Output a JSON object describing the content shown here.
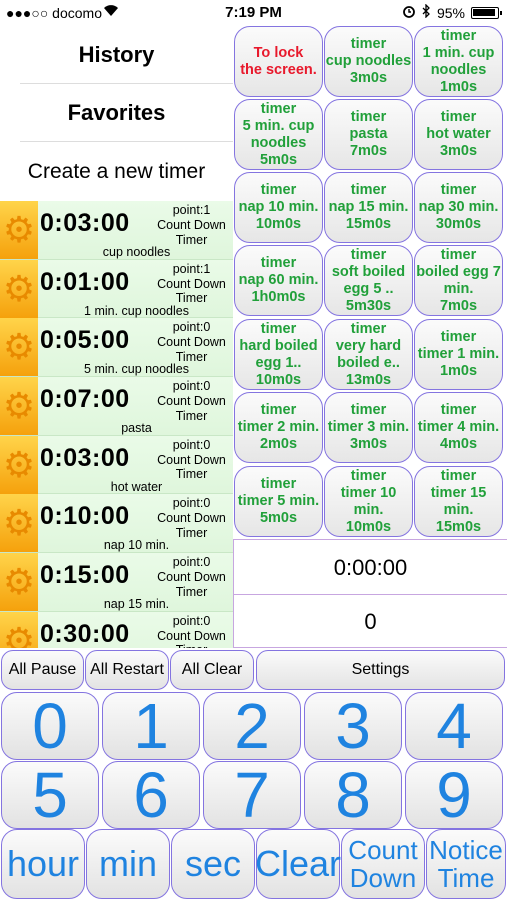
{
  "status": {
    "carrier": "●●●○○ docomo",
    "time": "7:19 PM",
    "battery": "95%"
  },
  "menu": {
    "history": "History",
    "favorites": "Favorites",
    "create": "Create a new timer"
  },
  "timers": [
    {
      "time": "0:03:00",
      "point": "point:1",
      "type": "Count Down Timer",
      "name": "cup noodles"
    },
    {
      "time": "0:01:00",
      "point": "point:1",
      "type": "Count Down Timer",
      "name": "1 min. cup noodles"
    },
    {
      "time": "0:05:00",
      "point": "point:0",
      "type": "Count Down Timer",
      "name": "5 min. cup noodles"
    },
    {
      "time": "0:07:00",
      "point": "point:0",
      "type": "Count Down Timer",
      "name": "pasta"
    },
    {
      "time": "0:03:00",
      "point": "point:0",
      "type": "Count Down Timer",
      "name": "hot water"
    },
    {
      "time": "0:10:00",
      "point": "point:0",
      "type": "Count Down Timer",
      "name": "nap 10 min."
    },
    {
      "time": "0:15:00",
      "point": "point:0",
      "type": "Count Down Timer",
      "name": "nap 15 min."
    },
    {
      "time": "0:30:00",
      "point": "point:0",
      "type": "Count Down Timer",
      "name": ""
    }
  ],
  "presets": [
    [
      "To lock",
      "the screen."
    ],
    [
      "timer",
      "cup noodles",
      "3m0s"
    ],
    [
      "timer",
      "1 min. cup",
      "noodles",
      "1m0s"
    ],
    [
      "timer",
      "5 min. cup",
      "noodles",
      "5m0s"
    ],
    [
      "timer",
      "pasta",
      "7m0s"
    ],
    [
      "timer",
      "hot water",
      "3m0s"
    ],
    [
      "timer",
      "nap 10 min.",
      "10m0s"
    ],
    [
      "timer",
      "nap 15 min.",
      "15m0s"
    ],
    [
      "timer",
      "nap 30 min.",
      "30m0s"
    ],
    [
      "timer",
      "nap 60 min.",
      "1h0m0s"
    ],
    [
      "timer",
      "soft boiled",
      "egg 5 ..",
      "5m30s"
    ],
    [
      "timer",
      "boiled egg 7",
      "min.",
      "7m0s"
    ],
    [
      "timer",
      "hard boiled",
      "egg 1..",
      "10m0s"
    ],
    [
      "timer",
      "very hard",
      "boiled e..",
      "13m0s"
    ],
    [
      "timer",
      "timer 1 min.",
      "1m0s"
    ],
    [
      "timer",
      "timer 2 min.",
      "2m0s"
    ],
    [
      "timer",
      "timer 3 min.",
      "3m0s"
    ],
    [
      "timer",
      "timer 4 min.",
      "4m0s"
    ],
    [
      "timer",
      "timer 5 min.",
      "5m0s"
    ],
    [
      "timer",
      "timer 10",
      "min.",
      "10m0s"
    ],
    [
      "timer",
      "timer 15",
      "min.",
      "15m0s"
    ]
  ],
  "display": {
    "time": "0:00:00",
    "count": "0"
  },
  "controls": {
    "all_pause": "All Pause",
    "all_restart": "All Restart",
    "all_clear": "All Clear",
    "settings": "Settings"
  },
  "keypad": {
    "digits": [
      "0",
      "1",
      "2",
      "3",
      "4",
      "5",
      "6",
      "7",
      "8",
      "9"
    ],
    "hour": "hour",
    "min": "min",
    "sec": "sec",
    "clear": "Clear",
    "count_down": [
      "Count",
      "Down"
    ],
    "notice_time": [
      "Notice",
      "Time"
    ]
  },
  "colors": {
    "accent_blue": "#1f83e0",
    "preset_green": "#21a03a",
    "lock_red": "#e8192c",
    "border_purple": "#8474e0"
  },
  "icons": {
    "gear": "gear-icon",
    "wifi": "wifi-icon",
    "alarm": "alarm-clock-icon",
    "bluetooth": "bluetooth-icon",
    "battery": "battery-icon"
  }
}
